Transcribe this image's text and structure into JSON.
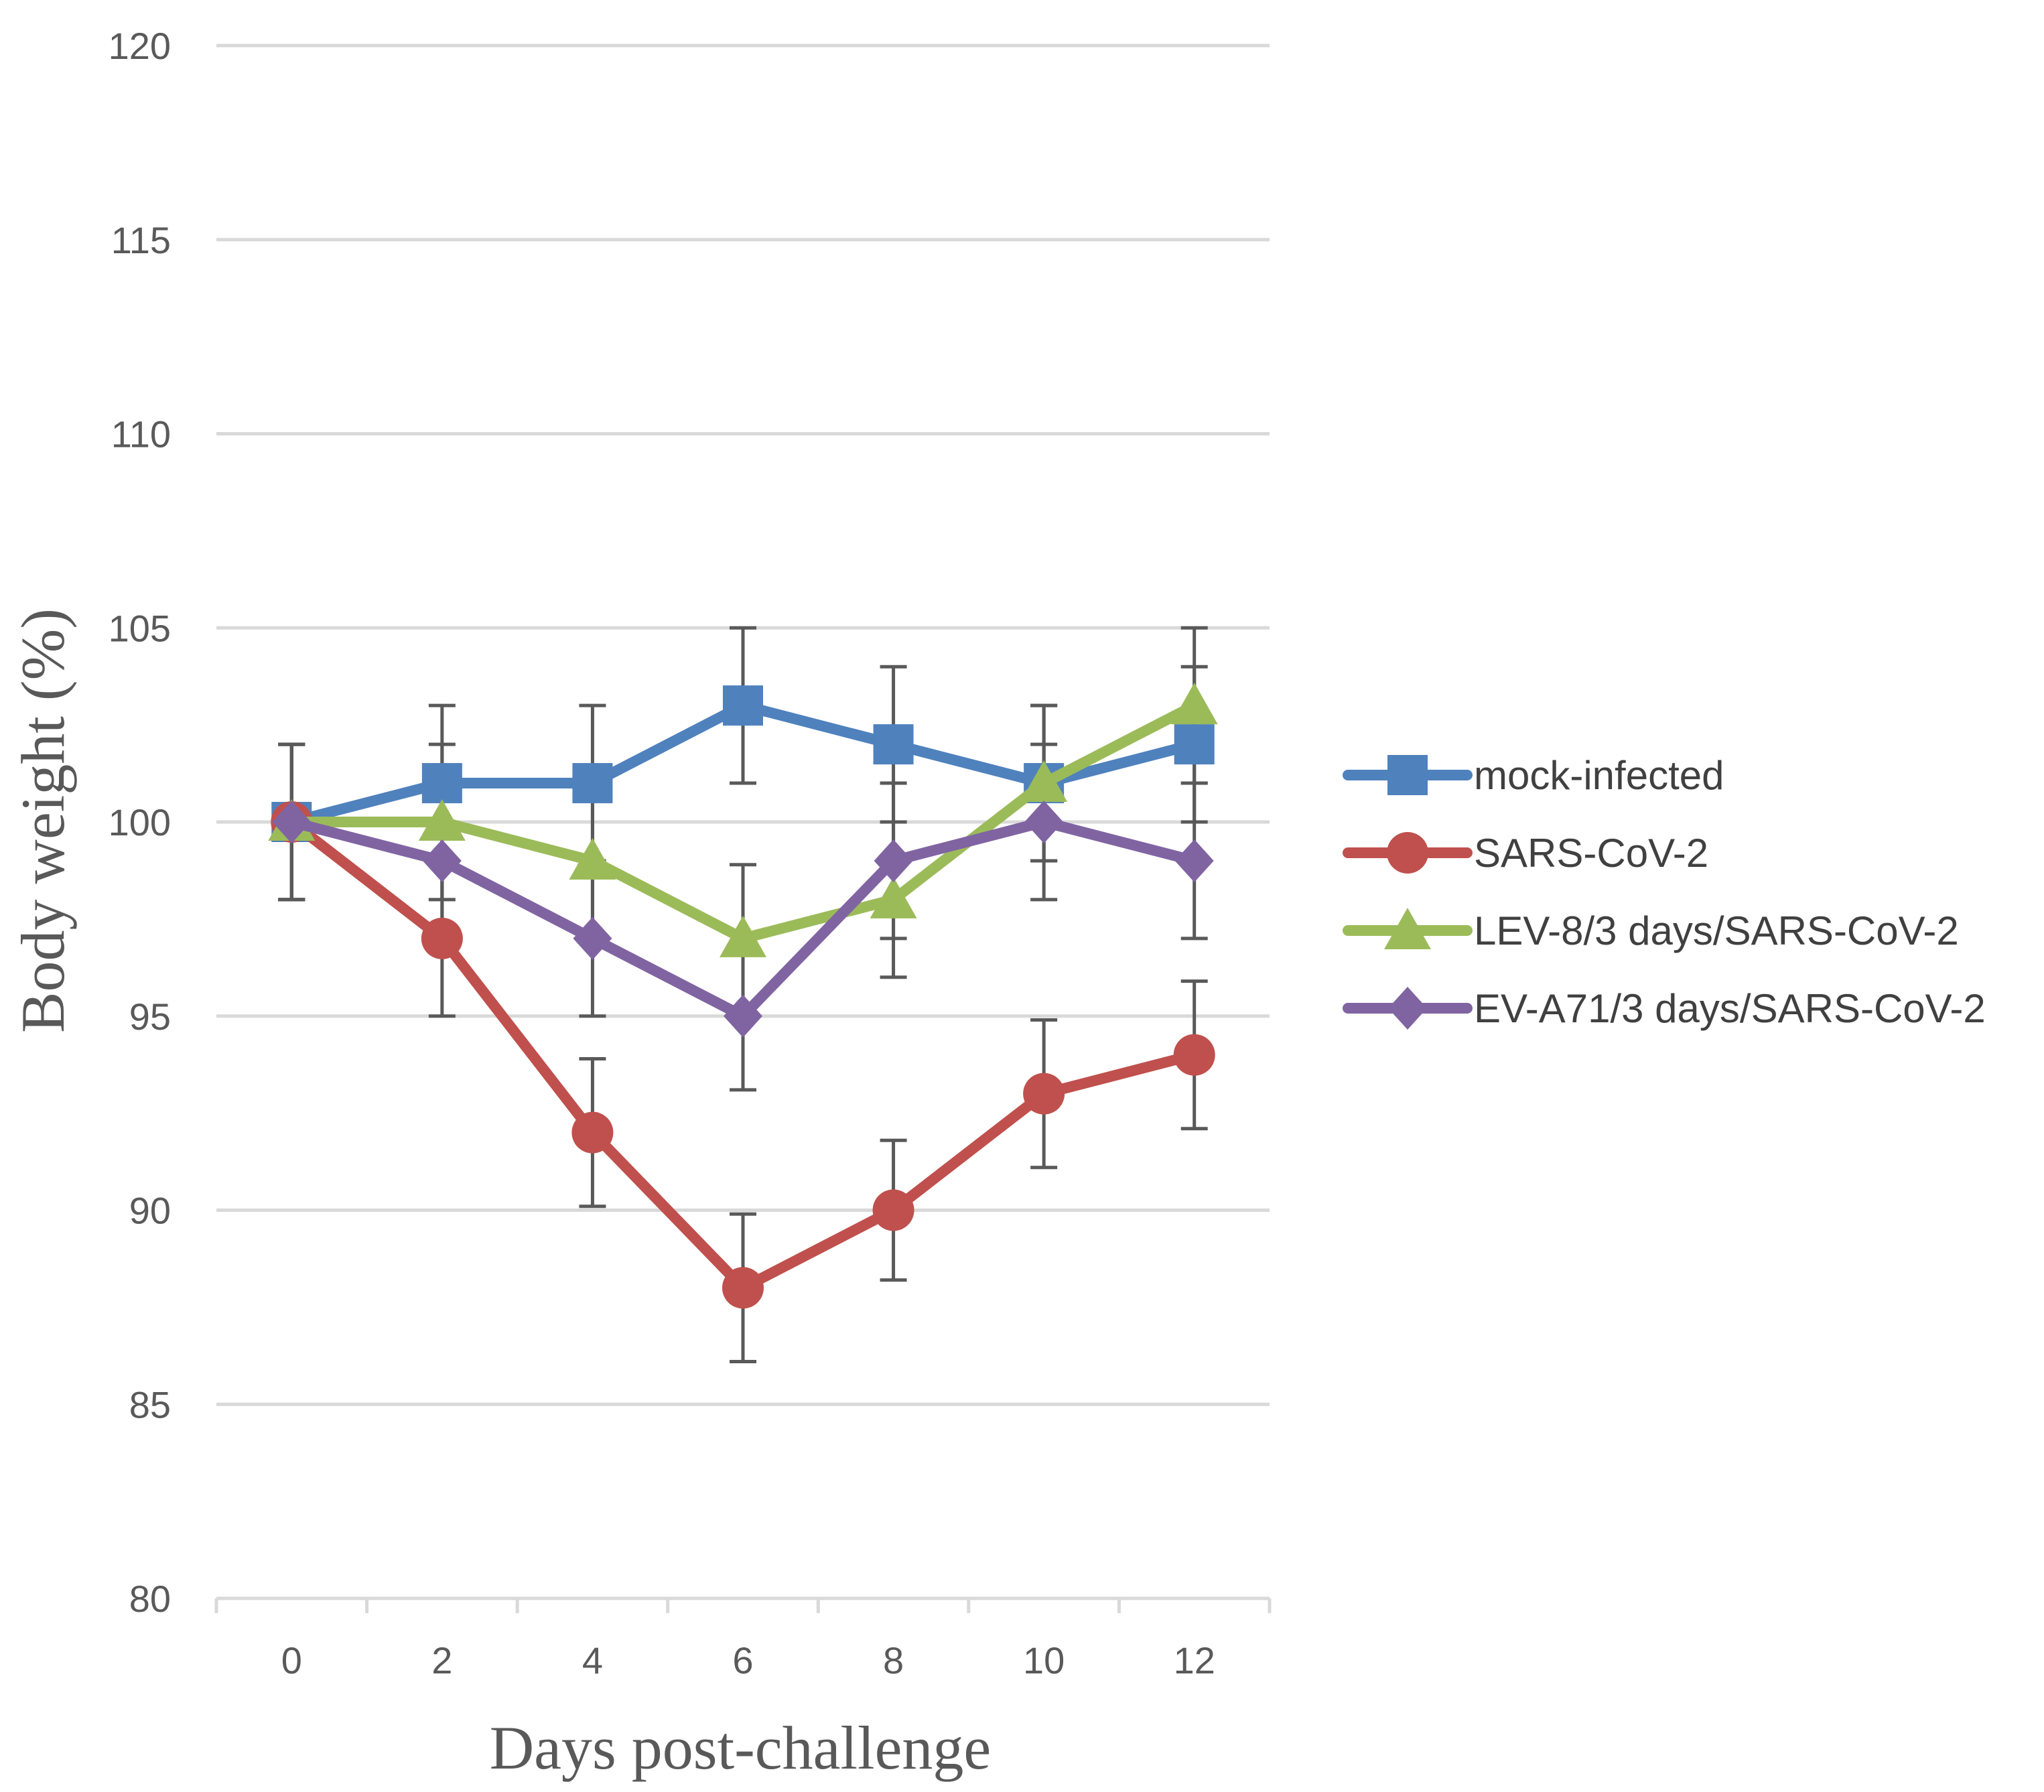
{
  "chart_data": {
    "type": "line",
    "x": [
      0,
      2,
      4,
      6,
      8,
      10,
      12
    ],
    "categories": [
      "0",
      "2",
      "4",
      "6",
      "8",
      "10",
      "12"
    ],
    "xlabel": "Days post-challenge",
    "ylabel": "Body weight (%)",
    "ylim": [
      80,
      120
    ],
    "yticks": [
      80,
      85,
      90,
      95,
      100,
      105,
      110,
      115,
      120
    ],
    "ytick_labels": [
      "80",
      "85",
      "90",
      "95",
      "100",
      "105",
      "110",
      "115",
      "120"
    ],
    "grid": true,
    "legend_position": "right",
    "series": [
      {
        "name": "mock-infected",
        "color": "#4F81BD",
        "marker": "square",
        "values": [
          100,
          101,
          101,
          103,
          102,
          101,
          102
        ],
        "error": [
          2,
          2,
          2,
          2,
          2,
          2,
          2
        ]
      },
      {
        "name": "SARS-CoV-2",
        "color": "#C0504D",
        "marker": "circle",
        "values": [
          100,
          97,
          92,
          88,
          90,
          93,
          94
        ],
        "error": [
          2,
          2,
          1.9,
          1.9,
          1.8,
          1.9,
          1.9
        ]
      },
      {
        "name": "LEV-8/3 days/SARS-CoV-2",
        "color": "#9BBB59",
        "marker": "triangle",
        "values": [
          100,
          100,
          99,
          97,
          98,
          101,
          103
        ],
        "error": [
          2,
          2,
          2,
          1.9,
          2,
          2,
          2
        ]
      },
      {
        "name": "EV-A71/3 days/SARS-CoV-2",
        "color": "#8064A2",
        "marker": "diamond",
        "values": [
          100,
          99,
          97,
          95,
          99,
          100,
          99
        ],
        "error": [
          2,
          2,
          2,
          1.9,
          2,
          2,
          2
        ]
      }
    ]
  }
}
